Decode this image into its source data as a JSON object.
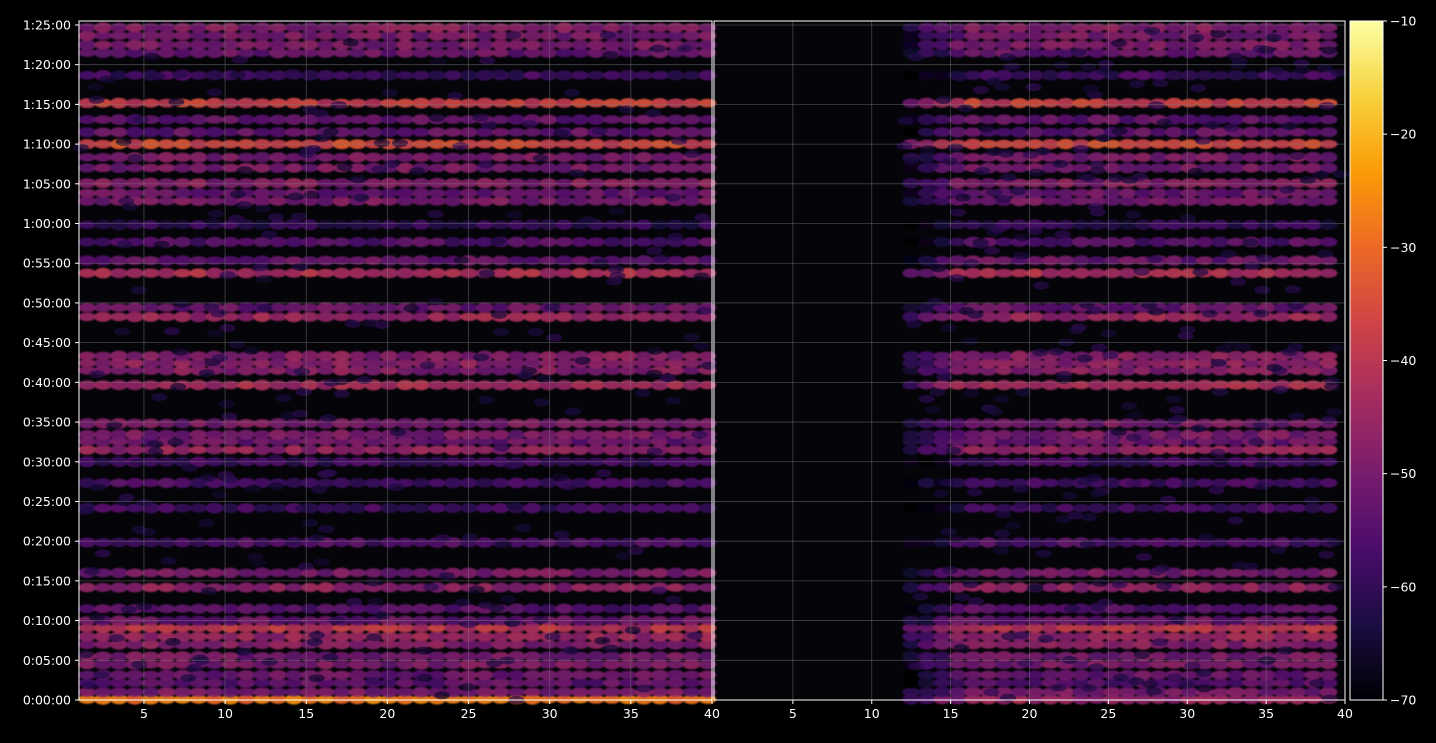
{
  "colors": {
    "background": "#000000",
    "plot_background": "#050509",
    "grid": "#7a7a7a",
    "axis": "#ffffff",
    "colormap": [
      "#000004",
      "#1b0c41",
      "#4a0c6b",
      "#781c6d",
      "#a52c60",
      "#cf4446",
      "#ed6925",
      "#fb9b06",
      "#f7d13d",
      "#fcffa4"
    ]
  },
  "chart_data": {
    "type": "heatmap",
    "colormap": "inferno",
    "title": "",
    "xlabel": "",
    "ylabel": "",
    "grid": true,
    "panels": [
      {
        "name": "left",
        "xlim": [
          1,
          40
        ],
        "x_ticks": [
          5,
          10,
          15,
          20,
          25,
          30,
          35,
          40
        ],
        "x_tick_labels": [
          "5",
          "10",
          "15",
          "20",
          "25",
          "30",
          "35",
          "40"
        ],
        "active_x_range": [
          1,
          40
        ]
      },
      {
        "name": "right",
        "xlim": [
          0,
          40
        ],
        "x_ticks": [
          5,
          10,
          15,
          20,
          25,
          30,
          35,
          40
        ],
        "x_tick_labels": [
          "5",
          "10",
          "15",
          "20",
          "25",
          "30",
          "35",
          "40"
        ],
        "active_x_range": [
          12,
          40
        ]
      }
    ],
    "ylim": [
      0,
      5130
    ],
    "y_ticks": [
      0,
      300,
      600,
      900,
      1200,
      1500,
      1800,
      2100,
      2400,
      2700,
      3000,
      3300,
      3600,
      3900,
      4200,
      4500,
      4800,
      5100
    ],
    "y_tick_labels": [
      "0:00:00",
      "0:05:00",
      "0:10:00",
      "0:15:00",
      "0:20:00",
      "0:25:00",
      "0:30:00",
      "0:35:00",
      "0:40:00",
      "0:45:00",
      "0:50:00",
      "0:55:00",
      "1:00:00",
      "1:05:00",
      "1:10:00",
      "1:15:00",
      "1:20:00",
      "1:25:00"
    ],
    "colorbar": {
      "min": -70,
      "max": -10,
      "ticks": [
        -70,
        -60,
        -50,
        -40,
        -30,
        -20,
        -10
      ],
      "tick_labels": [
        "−70",
        "−60",
        "−50",
        "−40",
        "−30",
        "−20",
        "−10"
      ]
    },
    "bands": [
      {
        "t": 5,
        "level_db": -28,
        "right_level_db": -45
      },
      {
        "t": 60,
        "level_db": -50
      },
      {
        "t": 130,
        "level_db": -54
      },
      {
        "t": 190,
        "level_db": -52
      },
      {
        "t": 270,
        "level_db": -50
      },
      {
        "t": 330,
        "level_db": -50
      },
      {
        "t": 420,
        "level_db": -48
      },
      {
        "t": 480,
        "level_db": -45
      },
      {
        "t": 545,
        "level_db": -40
      },
      {
        "t": 600,
        "level_db": -52
      },
      {
        "t": 690,
        "level_db": -55
      },
      {
        "t": 850,
        "level_db": -47
      },
      {
        "t": 960,
        "level_db": -50
      },
      {
        "t": 1190,
        "level_db": -56
      },
      {
        "t": 1450,
        "level_db": -58
      },
      {
        "t": 1640,
        "level_db": -57
      },
      {
        "t": 1800,
        "level_db": -58
      },
      {
        "t": 1890,
        "level_db": -46
      },
      {
        "t": 1955,
        "level_db": -52
      },
      {
        "t": 2005,
        "level_db": -50
      },
      {
        "t": 2090,
        "level_db": -50
      },
      {
        "t": 2380,
        "level_db": -43
      },
      {
        "t": 2490,
        "level_db": -48
      },
      {
        "t": 2545,
        "level_db": -47
      },
      {
        "t": 2600,
        "level_db": -48
      },
      {
        "t": 2895,
        "level_db": -45
      },
      {
        "t": 2965,
        "level_db": -52
      },
      {
        "t": 3225,
        "level_db": -42
      },
      {
        "t": 3320,
        "level_db": -52
      },
      {
        "t": 3460,
        "level_db": -55
      },
      {
        "t": 3590,
        "level_db": -60
      },
      {
        "t": 3770,
        "level_db": -50
      },
      {
        "t": 3830,
        "level_db": -52
      },
      {
        "t": 3905,
        "level_db": -48
      },
      {
        "t": 4020,
        "level_db": -50
      },
      {
        "t": 4100,
        "level_db": -50
      },
      {
        "t": 4200,
        "level_db": -36
      },
      {
        "t": 4290,
        "level_db": -53
      },
      {
        "t": 4385,
        "level_db": -53
      },
      {
        "t": 4510,
        "level_db": -38
      },
      {
        "t": 4720,
        "level_db": -58
      },
      {
        "t": 4890,
        "level_db": -52
      },
      {
        "t": 4950,
        "level_db": -50
      },
      {
        "t": 5020,
        "level_db": -50
      },
      {
        "t": 5080,
        "level_db": -48
      }
    ]
  }
}
